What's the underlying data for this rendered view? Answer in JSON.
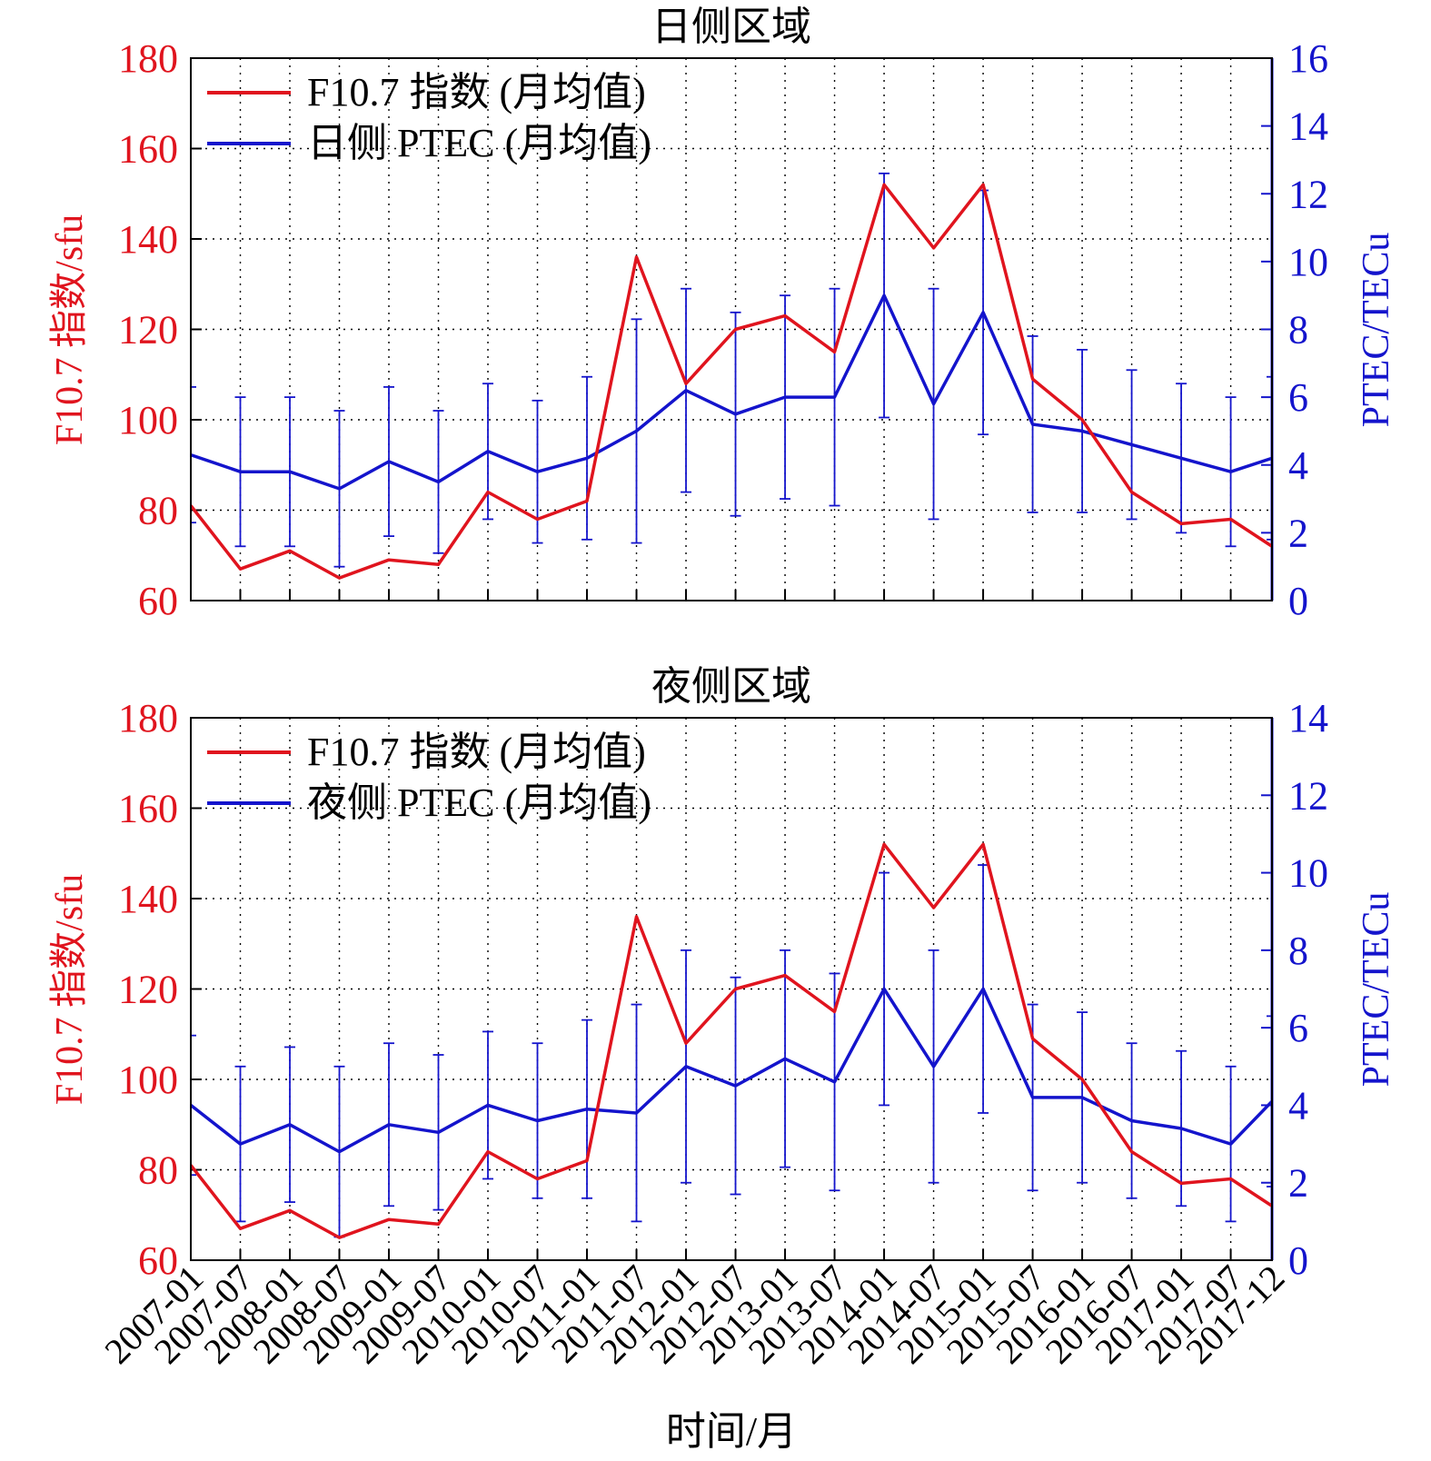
{
  "colors": {
    "f107": "#e0141e",
    "ptec": "#1414cc",
    "grid": "#000000",
    "text": "#000000"
  },
  "xaxis": {
    "label": "时间/月",
    "tick_labels": [
      "2007-01",
      "2007-07",
      "2008-01",
      "2008-07",
      "2009-01",
      "2009-07",
      "2010-01",
      "2010-07",
      "2011-01",
      "2011-07",
      "2012-01",
      "2012-07",
      "2013-01",
      "2013-07",
      "2014-01",
      "2014-07",
      "2015-01",
      "2015-07",
      "2016-01",
      "2016-07",
      "2017-01",
      "2017-07",
      "2017-12"
    ]
  },
  "chart_data": [
    {
      "type": "line",
      "title": "日侧区域",
      "legend": {
        "position": "top-left",
        "entries": [
          "F10.7 指数 (月均值)",
          "日侧 PTEC (月均值)"
        ]
      },
      "grid": true,
      "x_range": [
        "2007-01",
        "2017-12"
      ],
      "y_left": {
        "label": "F10.7 指数/sfu",
        "ticks": [
          60,
          80,
          100,
          120,
          140,
          160,
          180
        ],
        "lim": [
          60,
          180
        ]
      },
      "y_right": {
        "label": "PTEC/TECu",
        "ticks": [
          0,
          2,
          4,
          6,
          8,
          10,
          12,
          14,
          16
        ],
        "lim": [
          0,
          16
        ]
      },
      "series": [
        {
          "name": "F10.7 指数 (月均值)",
          "axis": "left",
          "x": [
            "2007-01",
            "2007-07",
            "2008-01",
            "2008-07",
            "2009-01",
            "2009-07",
            "2010-01",
            "2010-07",
            "2011-01",
            "2011-07",
            "2012-01",
            "2012-07",
            "2013-01",
            "2013-07",
            "2014-01",
            "2014-07",
            "2015-01",
            "2015-07",
            "2016-01",
            "2016-07",
            "2017-01",
            "2017-07",
            "2017-12"
          ],
          "values": [
            81,
            67,
            71,
            65,
            69,
            68,
            84,
            78,
            82,
            136,
            108,
            120,
            123,
            115,
            152,
            138,
            152,
            109,
            100,
            84,
            77,
            78,
            72
          ]
        },
        {
          "name": "日侧 PTEC (月均值)",
          "axis": "right",
          "x": [
            "2007-01",
            "2007-07",
            "2008-01",
            "2008-07",
            "2009-01",
            "2009-07",
            "2010-01",
            "2010-07",
            "2011-01",
            "2011-07",
            "2012-01",
            "2012-07",
            "2013-01",
            "2013-07",
            "2014-01",
            "2014-07",
            "2015-01",
            "2015-07",
            "2016-01",
            "2016-07",
            "2017-01",
            "2017-07",
            "2017-12"
          ],
          "values": [
            4.3,
            3.8,
            3.8,
            3.3,
            4.1,
            3.5,
            4.4,
            3.8,
            4.2,
            5.0,
            6.2,
            5.5,
            6.0,
            6.0,
            9.0,
            5.8,
            8.5,
            5.2,
            5.0,
            4.6,
            4.2,
            3.8,
            4.2
          ],
          "error": [
            2.0,
            2.2,
            2.2,
            2.3,
            2.2,
            2.1,
            2.0,
            2.1,
            2.4,
            3.3,
            3.0,
            3.0,
            3.0,
            3.2,
            3.6,
            3.4,
            3.6,
            2.6,
            2.4,
            2.2,
            2.2,
            2.2,
            2.4
          ]
        }
      ]
    },
    {
      "type": "line",
      "title": "夜侧区域",
      "legend": {
        "position": "top-left",
        "entries": [
          "F10.7 指数 (月均值)",
          "夜侧 PTEC (月均值)"
        ]
      },
      "grid": true,
      "x_range": [
        "2007-01",
        "2017-12"
      ],
      "y_left": {
        "label": "F10.7 指数/sfu",
        "ticks": [
          60,
          80,
          100,
          120,
          140,
          160,
          180
        ],
        "lim": [
          60,
          180
        ]
      },
      "y_right": {
        "label": "PTEC/TECu",
        "ticks": [
          0,
          2,
          4,
          6,
          8,
          10,
          12,
          14
        ],
        "lim": [
          0,
          14
        ]
      },
      "series": [
        {
          "name": "F10.7 指数 (月均值)",
          "axis": "left",
          "x": [
            "2007-01",
            "2007-07",
            "2008-01",
            "2008-07",
            "2009-01",
            "2009-07",
            "2010-01",
            "2010-07",
            "2011-01",
            "2011-07",
            "2012-01",
            "2012-07",
            "2013-01",
            "2013-07",
            "2014-01",
            "2014-07",
            "2015-01",
            "2015-07",
            "2016-01",
            "2016-07",
            "2017-01",
            "2017-07",
            "2017-12"
          ],
          "values": [
            81,
            67,
            71,
            65,
            69,
            68,
            84,
            78,
            82,
            136,
            108,
            120,
            123,
            115,
            152,
            138,
            152,
            109,
            100,
            84,
            77,
            78,
            72
          ]
        },
        {
          "name": "夜侧 PTEC (月均值)",
          "axis": "right",
          "x": [
            "2007-01",
            "2007-07",
            "2008-01",
            "2008-07",
            "2009-01",
            "2009-07",
            "2010-01",
            "2010-07",
            "2011-01",
            "2011-07",
            "2012-01",
            "2012-07",
            "2013-01",
            "2013-07",
            "2014-01",
            "2014-07",
            "2015-01",
            "2015-07",
            "2016-01",
            "2016-07",
            "2017-01",
            "2017-07",
            "2017-12"
          ],
          "values": [
            4.0,
            3.0,
            3.5,
            2.8,
            3.5,
            3.3,
            4.0,
            3.6,
            3.9,
            3.8,
            5.0,
            4.5,
            5.2,
            4.6,
            7.0,
            5.0,
            7.0,
            4.2,
            4.2,
            3.6,
            3.4,
            3.0,
            4.1
          ],
          "error": [
            1.8,
            2.0,
            2.0,
            2.2,
            2.1,
            2.0,
            1.9,
            2.0,
            2.3,
            2.8,
            3.0,
            2.8,
            2.8,
            2.8,
            3.0,
            3.0,
            3.2,
            2.4,
            2.2,
            2.0,
            2.0,
            2.0,
            2.2
          ]
        }
      ]
    }
  ]
}
